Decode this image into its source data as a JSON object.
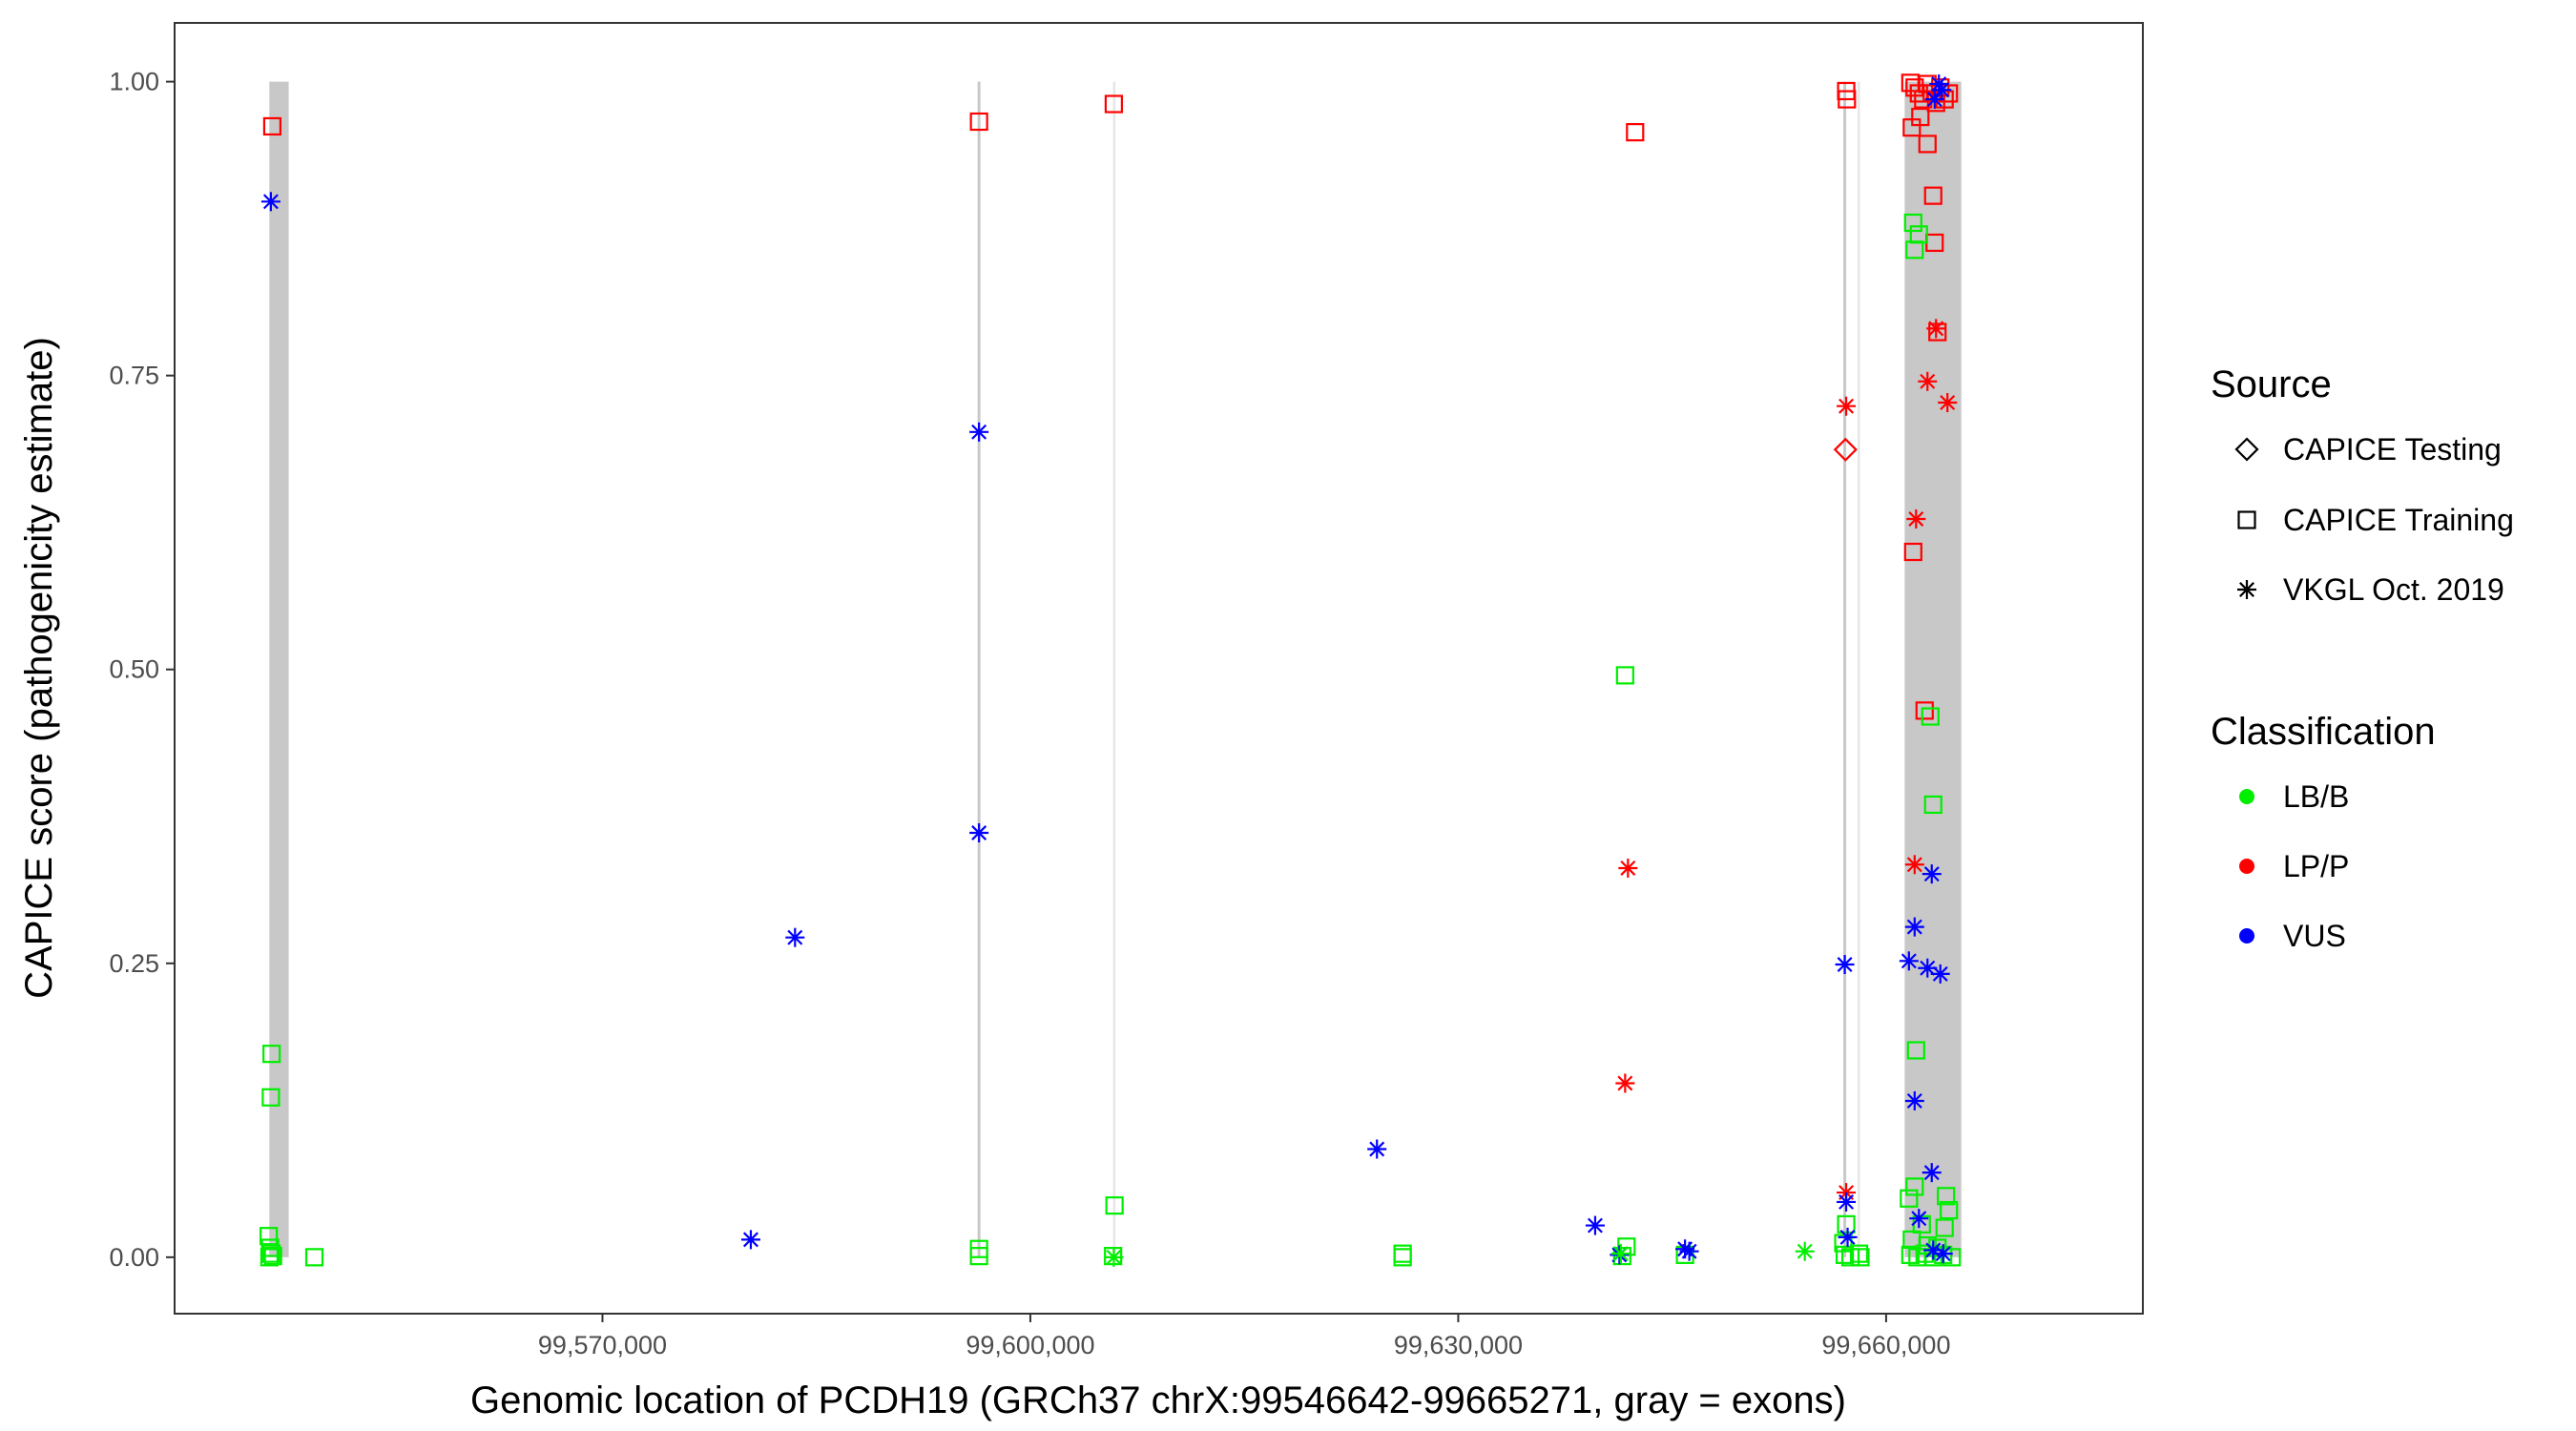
{
  "chart_data": {
    "type": "scatter",
    "title": "",
    "xlabel": "Genomic location of PCDH19 (GRCh37 chrX:99546642-99665271, gray = exons)",
    "ylabel": "CAPICE score (pathogenicity estimate)",
    "xlim": [
      99540000,
      99678000
    ],
    "ylim": [
      -0.048,
      1.05
    ],
    "x_ticks": [
      99570000,
      99600000,
      99630000,
      99660000
    ],
    "x_tick_labels": [
      "99,570,000",
      "99,600,000",
      "99,630,000",
      "99,660,000"
    ],
    "y_ticks": [
      0,
      0.25,
      0.5,
      0.75,
      1
    ],
    "y_tick_labels": [
      "0.00",
      "0.25",
      "0.50",
      "0.75",
      "1.00"
    ],
    "grid": false,
    "exons": [
      {
        "start": 99546642,
        "end": 99548000,
        "shade": "wide"
      },
      {
        "start": 99596300,
        "end": 99596500,
        "shade": "line"
      },
      {
        "start": 99605800,
        "end": 99605900,
        "shade": "faint"
      },
      {
        "start": 99657000,
        "end": 99657200,
        "shade": "line"
      },
      {
        "start": 99658000,
        "end": 99658100,
        "shade": "faint"
      },
      {
        "start": 99661300,
        "end": 99665271,
        "shade": "wide"
      }
    ],
    "colors": {
      "LB/B": "#00ee00",
      "LP/P": "#ff0000",
      "VUS": "#0000ff",
      "exon": "#c8c8c8"
    },
    "legend": {
      "position": "right",
      "source_title": "Source",
      "source_items": [
        {
          "label": "CAPICE Testing",
          "shape": "diamond"
        },
        {
          "label": "CAPICE Training",
          "shape": "square"
        },
        {
          "label": "VKGL Oct. 2019",
          "shape": "asterisk"
        }
      ],
      "class_title": "Classification",
      "class_items": [
        {
          "label": "LB/B",
          "color": "#00ee00"
        },
        {
          "label": "LP/P",
          "color": "#ff0000"
        },
        {
          "label": "VUS",
          "color": "#0000ff"
        }
      ]
    },
    "series": [
      {
        "name": "CAPICE Testing",
        "shape": "diamond",
        "points": [
          [
            99657150,
            0.687,
            "LP/P"
          ]
        ]
      },
      {
        "name": "CAPICE Training",
        "shape": "square",
        "points": [
          [
            99546850,
            0.962,
            "LP/P"
          ],
          [
            99596400,
            0.966,
            "LP/P"
          ],
          [
            99605850,
            0.981,
            "LP/P"
          ],
          [
            99642400,
            0.957,
            "LP/P"
          ],
          [
            99657200,
            0.992,
            "LP/P"
          ],
          [
            99657250,
            0.985,
            "LP/P"
          ],
          [
            99661700,
            0.999,
            "LP/P"
          ],
          [
            99662000,
            0.995,
            "LP/P"
          ],
          [
            99662300,
            0.99,
            "LP/P"
          ],
          [
            99662600,
            0.985,
            "LP/P"
          ],
          [
            99662900,
            0.998,
            "LP/P"
          ],
          [
            99663200,
            0.99,
            "LP/P"
          ],
          [
            99663500,
            0.982,
            "LP/P"
          ],
          [
            99663800,
            0.995,
            "LP/P"
          ],
          [
            99664100,
            0.985,
            "LP/P"
          ],
          [
            99664400,
            0.99,
            "LP/P"
          ],
          [
            99661800,
            0.961,
            "LP/P"
          ],
          [
            99662400,
            0.97,
            "LP/P"
          ],
          [
            99662900,
            0.947,
            "LP/P"
          ],
          [
            99663300,
            0.903,
            "LP/P"
          ],
          [
            99663400,
            0.863,
            "LP/P"
          ],
          [
            99663600,
            0.787,
            "LP/P"
          ],
          [
            99661900,
            0.6,
            "LP/P"
          ],
          [
            99662700,
            0.465,
            "LP/P"
          ],
          [
            99546800,
            0.173,
            "LB/B"
          ],
          [
            99546750,
            0.136,
            "LB/B"
          ],
          [
            99546600,
            0.018,
            "LB/B"
          ],
          [
            99546700,
            0.008,
            "LB/B"
          ],
          [
            99546800,
            0.003,
            "LB/B"
          ],
          [
            99546900,
            0.001,
            "LB/B"
          ],
          [
            99546650,
            0.0,
            "LB/B"
          ],
          [
            99549800,
            0.0,
            "LB/B"
          ],
          [
            99596400,
            0.007,
            "LB/B"
          ],
          [
            99596400,
            0.001,
            "LB/B"
          ],
          [
            99605900,
            0.044,
            "LB/B"
          ],
          [
            99605800,
            0.001,
            "LB/B"
          ],
          [
            99626100,
            0.003,
            "LB/B"
          ],
          [
            99626100,
            0.0,
            "LB/B"
          ],
          [
            99641500,
            0.001,
            "LB/B"
          ],
          [
            99641700,
            0.495,
            "LB/B"
          ],
          [
            99641800,
            0.009,
            "LB/B"
          ],
          [
            99645900,
            0.002,
            "LB/B"
          ],
          [
            99657200,
            0.028,
            "LB/B"
          ],
          [
            99657000,
            0.012,
            "LB/B"
          ],
          [
            99657100,
            0.002,
            "LB/B"
          ],
          [
            99657500,
            0.0,
            "LB/B"
          ],
          [
            99658100,
            0.003,
            "LB/B"
          ],
          [
            99658200,
            0.0,
            "LB/B"
          ],
          [
            99661900,
            0.88,
            "LB/B"
          ],
          [
            99662300,
            0.87,
            "LB/B"
          ],
          [
            99662000,
            0.857,
            "LB/B"
          ],
          [
            99663100,
            0.46,
            "LB/B"
          ],
          [
            99663300,
            0.385,
            "LB/B"
          ],
          [
            99662100,
            0.176,
            "LB/B"
          ],
          [
            99664200,
            0.052,
            "LB/B"
          ],
          [
            99661600,
            0.05,
            "LB/B"
          ],
          [
            99662000,
            0.06,
            "LB/B"
          ],
          [
            99664400,
            0.04,
            "LB/B"
          ],
          [
            99662500,
            0.028,
            "LB/B"
          ],
          [
            99664100,
            0.025,
            "LB/B"
          ],
          [
            99661800,
            0.015,
            "LB/B"
          ],
          [
            99662900,
            0.01,
            "LB/B"
          ],
          [
            99663600,
            0.008,
            "LB/B"
          ],
          [
            99661700,
            0.002,
            "LB/B"
          ],
          [
            99662200,
            0.0,
            "LB/B"
          ],
          [
            99662700,
            0.003,
            "LB/B"
          ],
          [
            99663300,
            0.0,
            "LB/B"
          ],
          [
            99664000,
            0.002,
            "LB/B"
          ],
          [
            99664600,
            0.0,
            "LB/B"
          ]
        ]
      },
      {
        "name": "VKGL Oct. 2019",
        "shape": "asterisk",
        "points": [
          [
            99657200,
            0.724,
            "LP/P"
          ],
          [
            99657200,
            0.055,
            "LP/P"
          ],
          [
            99641900,
            0.331,
            "LP/P"
          ],
          [
            99641700,
            0.148,
            "LP/P"
          ],
          [
            99663500,
            0.79,
            "LP/P"
          ],
          [
            99662900,
            0.745,
            "LP/P"
          ],
          [
            99664300,
            0.727,
            "LP/P"
          ],
          [
            99662100,
            0.628,
            "LP/P"
          ],
          [
            99662000,
            0.334,
            "LP/P"
          ],
          [
            99546750,
            0.898,
            "VUS"
          ],
          [
            99596400,
            0.702,
            "VUS"
          ],
          [
            99596400,
            0.361,
            "VUS"
          ],
          [
            99583500,
            0.272,
            "VUS"
          ],
          [
            99580400,
            0.015,
            "VUS"
          ],
          [
            99624300,
            0.092,
            "VUS"
          ],
          [
            99639600,
            0.027,
            "VUS"
          ],
          [
            99641300,
            0.002,
            "VUS"
          ],
          [
            99645900,
            0.007,
            "VUS"
          ],
          [
            99646200,
            0.005,
            "VUS"
          ],
          [
            99657100,
            0.249,
            "VUS"
          ],
          [
            99657200,
            0.047,
            "VUS"
          ],
          [
            99657300,
            0.017,
            "VUS"
          ],
          [
            99661600,
            0.252,
            "VUS"
          ],
          [
            99662000,
            0.281,
            "VUS"
          ],
          [
            99662900,
            0.246,
            "VUS"
          ],
          [
            99663800,
            0.241,
            "VUS"
          ],
          [
            99663200,
            0.326,
            "VUS"
          ],
          [
            99662000,
            0.133,
            "VUS"
          ],
          [
            99663200,
            0.072,
            "VUS"
          ],
          [
            99662300,
            0.033,
            "VUS"
          ],
          [
            99663300,
            0.006,
            "VUS"
          ],
          [
            99664000,
            0.003,
            "VUS"
          ],
          [
            99663700,
            0.998,
            "VUS"
          ],
          [
            99663400,
            0.985,
            "VUS"
          ],
          [
            99663900,
            0.993,
            "VUS"
          ],
          [
            99654300,
            0.005,
            "LB/B"
          ],
          [
            99641400,
            0.003,
            "LB/B"
          ],
          [
            99605850,
            0.0,
            "LB/B"
          ]
        ]
      }
    ]
  }
}
